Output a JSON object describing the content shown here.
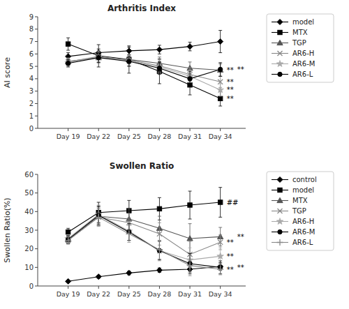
{
  "chart_data": [
    {
      "type": "line",
      "title": "Arthritis Index",
      "y_label": "AI score",
      "x": [
        19,
        22,
        25,
        28,
        31,
        34
      ],
      "xlim": [
        16,
        36.5
      ],
      "xticks": [
        {
          "value": 19,
          "label": "Day 19"
        },
        {
          "value": 22,
          "label": "Day 22"
        },
        {
          "value": 25,
          "label": "Day 25"
        },
        {
          "value": 28,
          "label": "Day 28"
        },
        {
          "value": 31,
          "label": "Day 31"
        },
        {
          "value": 34,
          "label": "Day 34"
        }
      ],
      "ylim": [
        0,
        9
      ],
      "yticks": [
        0,
        1,
        2,
        3,
        4,
        5,
        6,
        7,
        8,
        9
      ],
      "grid": false,
      "legend": "right",
      "series": [
        {
          "name": "model",
          "color": "#000000",
          "marker": "diamond",
          "line_style": "solid",
          "values": [
            5.8,
            6.1,
            6.25,
            6.35,
            6.6,
            7.0
          ],
          "errors": [
            0.3,
            0.3,
            0.3,
            0.35,
            0.35,
            0.9
          ]
        },
        {
          "name": "MTX",
          "color": "#000000",
          "marker": "square",
          "line_style": "solid",
          "values": [
            6.8,
            5.85,
            5.55,
            4.6,
            3.5,
            2.4
          ],
          "errors": [
            0.5,
            0.9,
            1.1,
            1.0,
            0.8,
            0.6
          ]
        },
        {
          "name": "TGP",
          "color": "#555555",
          "marker": "triangle",
          "line_style": "solid",
          "values": [
            5.4,
            5.7,
            5.55,
            5.25,
            4.85,
            4.7
          ],
          "errors": [
            0.3,
            0.4,
            0.35,
            0.5,
            0.5,
            0.5
          ]
        },
        {
          "name": "AR6-H",
          "color": "#888888",
          "marker": "cross",
          "line_style": "solid",
          "values": [
            5.35,
            5.8,
            5.5,
            5.05,
            4.35,
            3.75
          ],
          "errors": [
            0.3,
            0.45,
            0.45,
            0.5,
            0.55,
            0.45
          ]
        },
        {
          "name": "AR6-M",
          "color": "#aaaaaa",
          "marker": "star",
          "line_style": "solid",
          "values": [
            5.3,
            5.75,
            5.45,
            4.95,
            4.2,
            3.1
          ],
          "errors": [
            0.3,
            0.4,
            0.4,
            0.5,
            0.5,
            0.5
          ]
        },
        {
          "name": "AR6-L",
          "color": "#000000",
          "marker": "circle",
          "line_style": "solid",
          "values": [
            5.25,
            5.7,
            5.4,
            4.85,
            4.0,
            4.75
          ],
          "errors": [
            0.3,
            0.4,
            0.4,
            0.5,
            0.6,
            0.55
          ]
        }
      ],
      "annotations": [
        {
          "text": "**",
          "x": 34,
          "y": 4.75
        },
        {
          "text": "**",
          "x": 34,
          "y": 3.75
        },
        {
          "text": "**",
          "x": 34,
          "y": 3.1
        },
        {
          "text": "**",
          "x": 34,
          "y": 2.4
        },
        {
          "text": "**",
          "x": 34,
          "y": 4.7
        }
      ]
    },
    {
      "type": "line",
      "title": "Swollen Ratio",
      "y_label": "Swollen Ratio(%)",
      "x": [
        19,
        22,
        25,
        28,
        31,
        34
      ],
      "xlim": [
        16,
        36.5
      ],
      "xticks": [
        {
          "value": 19,
          "label": "Day 19"
        },
        {
          "value": 22,
          "label": "Day 22"
        },
        {
          "value": 25,
          "label": "Day 25"
        },
        {
          "value": 28,
          "label": "Day 28"
        },
        {
          "value": 31,
          "label": "Day 31"
        },
        {
          "value": 34,
          "label": "Day 34"
        }
      ],
      "ylim": [
        0,
        60
      ],
      "yticks": [
        0,
        10,
        20,
        30,
        40,
        50,
        60
      ],
      "grid": false,
      "legend": "right",
      "series": [
        {
          "name": "control",
          "color": "#000000",
          "marker": "diamond",
          "line_style": "solid",
          "values": [
            2.5,
            5.0,
            7.0,
            8.5,
            9.0,
            10.5
          ],
          "errors": [
            0.5,
            0.8,
            1.0,
            1.2,
            1.5,
            2.0
          ]
        },
        {
          "name": "model",
          "color": "#000000",
          "marker": "square",
          "line_style": "solid",
          "values": [
            29.0,
            39.5,
            40.5,
            41.5,
            43.5,
            45.0
          ],
          "errors": [
            2.0,
            5.5,
            5.5,
            6.0,
            7.5,
            8.0
          ]
        },
        {
          "name": "MTX",
          "color": "#555555",
          "marker": "triangle",
          "line_style": "solid",
          "values": [
            25.0,
            37.5,
            36.0,
            31.0,
            25.5,
            26.5
          ],
          "errors": [
            2.0,
            5.0,
            5.5,
            6.5,
            8.0,
            5.0
          ]
        },
        {
          "name": "TGP",
          "color": "#888888",
          "marker": "cross",
          "line_style": "solid",
          "values": [
            24.5,
            37.0,
            34.0,
            28.0,
            17.0,
            23.5
          ],
          "errors": [
            2.0,
            4.5,
            5.0,
            6.0,
            7.0,
            4.0
          ]
        },
        {
          "name": "AR6-H",
          "color": "#aaaaaa",
          "marker": "star",
          "line_style": "solid",
          "values": [
            25.5,
            38.5,
            29.5,
            19.0,
            14.0,
            16.0
          ],
          "errors": [
            2.0,
            5.0,
            5.0,
            5.5,
            6.5,
            4.5
          ]
        },
        {
          "name": "AR6-M",
          "color": "#000000",
          "marker": "circle",
          "line_style": "solid",
          "values": [
            25.0,
            38.0,
            29.0,
            19.0,
            12.0,
            10.0
          ],
          "errors": [
            2.0,
            5.0,
            4.5,
            5.0,
            5.5,
            3.5
          ]
        },
        {
          "name": "AR6-L",
          "color": "#888888",
          "marker": "plus",
          "line_style": "solid",
          "values": [
            24.5,
            37.0,
            28.0,
            19.5,
            11.0,
            9.0
          ],
          "errors": [
            2.0,
            5.0,
            4.5,
            5.0,
            5.5,
            3.0
          ]
        }
      ],
      "annotations": [
        {
          "text": "##",
          "x": 34,
          "y": 45.0
        },
        {
          "text": "**",
          "x": 34,
          "y": 26.5
        },
        {
          "text": "**",
          "x": 34,
          "y": 23.5
        },
        {
          "text": "**",
          "x": 34,
          "y": 16.0
        },
        {
          "text": "**",
          "x": 34,
          "y": 10.0
        },
        {
          "text": "**",
          "x": 34,
          "y": 9.0
        }
      ]
    }
  ]
}
